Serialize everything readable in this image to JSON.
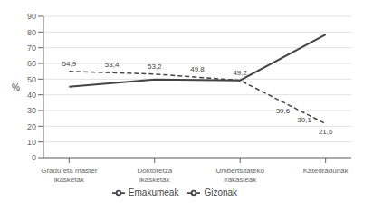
{
  "chart_data": {
    "type": "line",
    "categories": [
      "Gradu eta master\nikasketak",
      "Doktoretza\nikasketak",
      "Unibertsitateko\nirakasleak",
      "Katedradunak"
    ],
    "series": [
      {
        "name": "Emakumeak",
        "color": "#444444",
        "line_style": "dashed",
        "values": [
          54.9,
          53.2,
          49.2,
          21.6
        ]
      },
      {
        "name": "Gizonak",
        "color": "#444444",
        "line_style": "solid",
        "values": [
          45.1,
          49.8,
          49.2,
          78.4
        ]
      }
    ],
    "annotations": [
      {
        "text": "54,9",
        "x": 0,
        "y": 57.9,
        "position": "above"
      },
      {
        "text": "53,4",
        "x": 0.5,
        "y": 57.1,
        "position": "above"
      },
      {
        "text": "53,2",
        "x": 1,
        "y": 56.2,
        "position": "above"
      },
      {
        "text": "49,8",
        "x": 1.5,
        "y": 54.5,
        "position": "above"
      },
      {
        "text": "49,2",
        "x": 2,
        "y": 52.2,
        "position": "above"
      },
      {
        "text": "39,6",
        "x": 2.5,
        "y": 32.4,
        "position": "below"
      },
      {
        "text": "30,1",
        "x": 2.75,
        "y": 26.5,
        "position": "below"
      },
      {
        "text": "21,6",
        "x": 3,
        "y": 18.6,
        "position": "below"
      }
    ],
    "ylabel": "%",
    "xlim": [
      -0.3,
      3.3
    ],
    "ylim": [
      0,
      90
    ],
    "yticks": [
      0,
      10,
      20,
      30,
      40,
      50,
      60,
      70,
      80,
      90
    ],
    "grid": true,
    "legend": "bottom"
  }
}
